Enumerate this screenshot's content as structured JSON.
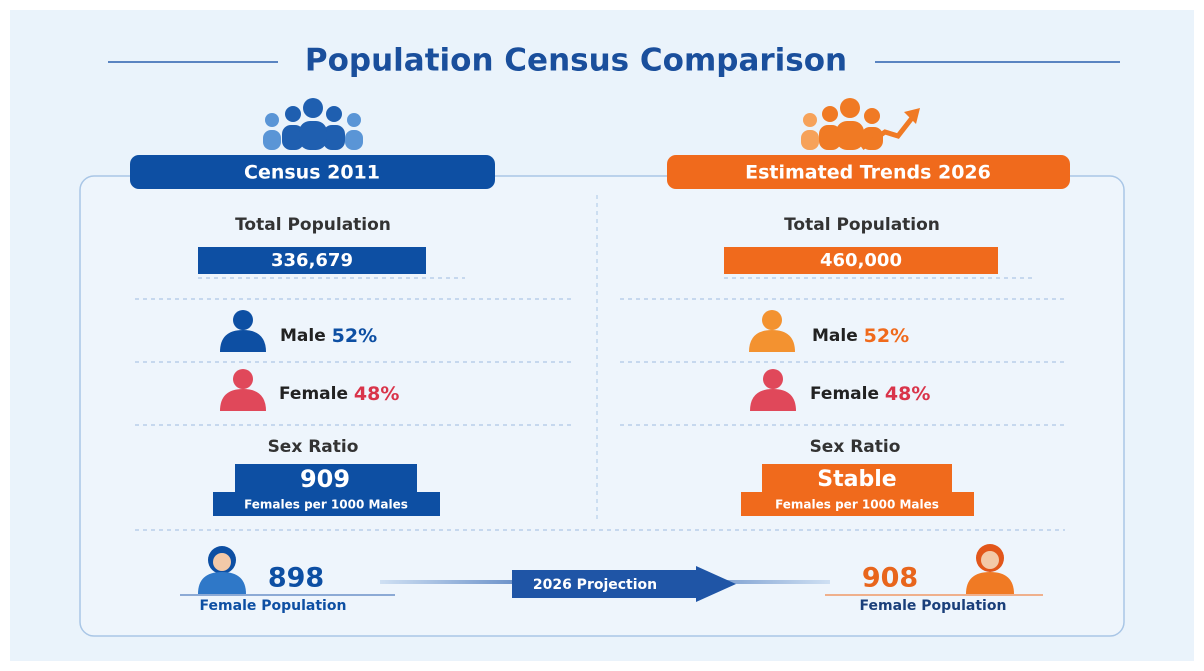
{
  "title": "Population Census Comparison",
  "left": {
    "header": "Census 2011",
    "total_label": "Total Population",
    "total": "336,679",
    "male_label": "Male",
    "male": "52%",
    "female_label": "Female",
    "female": "48%",
    "ratio_label": "Sex Ratio",
    "ratio": "909",
    "ratio_unit": "Females per 1000 Males",
    "female_pop": "898",
    "female_pop_label": "Female Population"
  },
  "right": {
    "header": "Estimated Trends 2026",
    "total_label": "Total Population",
    "total": "460,000",
    "male_label": "Male",
    "male": "52%",
    "female_label": "Female",
    "female": "48%",
    "ratio_label": "Sex Ratio",
    "ratio": "Stable",
    "ratio_unit": "Females per 1000 Males",
    "female_pop": "908",
    "female_pop_label": "Female Population"
  },
  "projection": "2026 Projection"
}
